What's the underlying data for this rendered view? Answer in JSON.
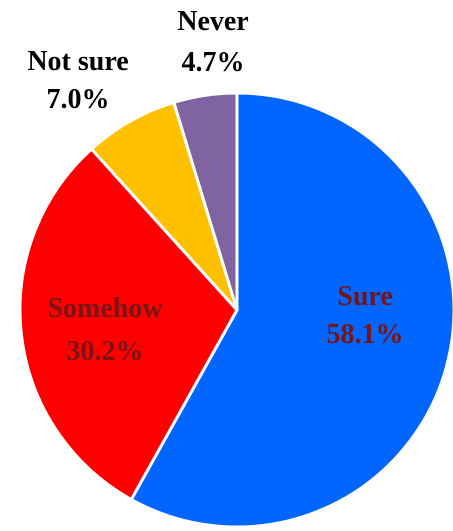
{
  "chart_data": {
    "type": "pie",
    "slices": [
      {
        "label": "Sure",
        "value": 58.1,
        "value_label": "58.1%",
        "color": "#0066ff",
        "label_color": "#7a1414"
      },
      {
        "label": "Somehow",
        "value": 30.2,
        "value_label": "30.2%",
        "color": "#ff0000",
        "label_color": "#7a1414"
      },
      {
        "label": "Not sure",
        "value": 7.0,
        "value_label": "7.0%",
        "color": "#ffc000",
        "label_color": "#000000"
      },
      {
        "label": "Never",
        "value": 4.7,
        "value_label": "4.7%",
        "color": "#8064a2",
        "label_color": "#000000"
      }
    ],
    "start": "12 o'clock",
    "direction": "clockwise",
    "legend": "none",
    "title": ""
  }
}
